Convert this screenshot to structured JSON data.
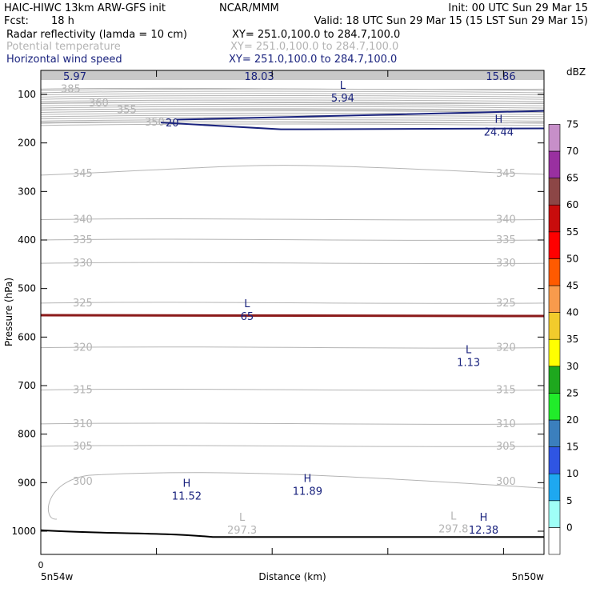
{
  "header": {
    "model": "HAIC-HIWC 13km ARW-GFS init",
    "org": "NCAR/MMM",
    "init": "Init: 00 UTC Sun 29 Mar 15",
    "fcst_label": "Fcst:",
    "fcst_value": "18 h",
    "valid": "Valid: 18 UTC Sun 29 Mar 15 (15 LST Sun 29 Mar 15)",
    "fields": [
      {
        "name": "Radar reflectivity (lamda = 10 cm)",
        "xy": "XY= 251.0,100.0 to 284.7,100.0",
        "color": "#000000"
      },
      {
        "name": "Potential temperature",
        "xy": "XY= 251.0,100.0 to 284.7,100.0",
        "color": "#b4b4b4"
      },
      {
        "name": "Horizontal wind speed",
        "xy": "XY= 251.0,100.0 to 284.7,100.0",
        "color": "#1a237e"
      }
    ]
  },
  "colors": {
    "theta": "#b4b4b4",
    "wind": "#1a237e",
    "terrain": "#000000",
    "level_line": "#8b1a1a",
    "top_band": "#c8c8c8"
  },
  "chart_data": {
    "type": "cross-section contour",
    "xlabel": "Distance (km)",
    "ylabel": "Pressure (hPa)",
    "x_tick_labels": [
      "0"
    ],
    "x_end_labels": [
      "5n54w",
      "5n50w"
    ],
    "y_ticks": [
      100,
      200,
      300,
      400,
      500,
      600,
      700,
      800,
      900,
      1000
    ],
    "theta_contours": [
      {
        "value": "385",
        "p": 89
      },
      {
        "value": "360",
        "p": 118
      },
      {
        "value": "355",
        "p": 132
      },
      {
        "value": "350",
        "p": 158
      },
      {
        "value": "345",
        "p": 263
      },
      {
        "value": "340",
        "p": 358
      },
      {
        "value": "335",
        "p": 400
      },
      {
        "value": "330",
        "p": 448
      },
      {
        "value": "325",
        "p": 530
      },
      {
        "value": "320",
        "p": 622
      },
      {
        "value": "315",
        "p": 709
      },
      {
        "value": "310",
        "p": 779
      },
      {
        "value": "305",
        "p": 825
      },
      {
        "value": "300",
        "p": 898
      }
    ],
    "theta_extrema": [
      {
        "kind": "L",
        "value": "297.3",
        "x_frac": 0.4,
        "p": 985
      },
      {
        "kind": "L",
        "value": "297.8",
        "x_frac": 0.82,
        "p": 983
      }
    ],
    "wind_extrema": [
      {
        "kind": "L",
        "value": "5.94",
        "x_frac": 0.6,
        "p": 95
      },
      {
        "kind": "H",
        "value": "24.44",
        "x_frac": 0.91,
        "p": 165
      },
      {
        "kind": "L",
        "value": "65",
        "x_frac": 0.41,
        "p": 545
      },
      {
        "kind": "L",
        "value": "1.13",
        "x_frac": 0.85,
        "p": 640
      },
      {
        "kind": "H",
        "value": "11.52",
        "x_frac": 0.29,
        "p": 915
      },
      {
        "kind": "H",
        "value": "11.89",
        "x_frac": 0.53,
        "p": 905
      },
      {
        "kind": "H",
        "value": "12.38",
        "x_frac": 0.88,
        "p": 985
      }
    ],
    "wind_contour_label": "20",
    "top_band_values": [
      "5.97",
      "18.03",
      "15.86"
    ],
    "colorbar": {
      "label": "dBZ",
      "ticks": [
        "0",
        "5",
        "10",
        "15",
        "20",
        "25",
        "30",
        "35",
        "40",
        "45",
        "50",
        "55",
        "60",
        "65",
        "70",
        "75"
      ],
      "colors": [
        "#ffffff",
        "#9ffff7",
        "#1ea8f0",
        "#2f55e3",
        "#3b7fbd",
        "#21ec2a",
        "#1ea81e",
        "#ffff00",
        "#f2cb2c",
        "#f89b4c",
        "#ff5a00",
        "#ff0000",
        "#c80c0c",
        "#8c4646",
        "#9930a0",
        "#c78fc9"
      ]
    }
  }
}
